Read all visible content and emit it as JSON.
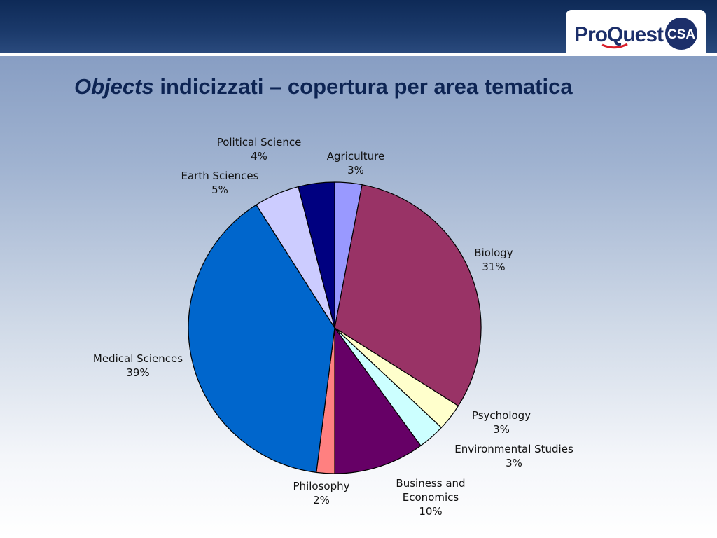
{
  "header": {
    "logo": {
      "proquest_text": "ProQuest",
      "csa_text": "CSA",
      "colors": {
        "navy": "#1c2f6a",
        "red": "#d81e2a"
      }
    }
  },
  "title": {
    "italic_part": "Objects",
    "rest": " indicizzati – copertura per area tematica"
  },
  "chart_data": {
    "type": "pie",
    "title": "",
    "start_angle_deg": 0,
    "direction": "clockwise",
    "slices": [
      {
        "label": "Agriculture",
        "value": 3,
        "value_label": "3%",
        "color": "#9999ff"
      },
      {
        "label": "Biology",
        "value": 31,
        "value_label": "31%",
        "color": "#993366"
      },
      {
        "label": "Psychology",
        "value": 3,
        "value_label": "3%",
        "color": "#ffffcc"
      },
      {
        "label": "Environmental Studies",
        "value": 3,
        "value_label": "3%",
        "color": "#ccffff"
      },
      {
        "label": "Business and Economics",
        "value": 10,
        "value_label": "10%",
        "color": "#660066"
      },
      {
        "label": "Philosophy",
        "value": 2,
        "value_label": "2%",
        "color": "#ff8080"
      },
      {
        "label": "Medical Sciences",
        "value": 39,
        "value_label": "39%",
        "color": "#0066cc"
      },
      {
        "label": "Earth Sciences",
        "value": 5,
        "value_label": "5%",
        "color": "#ccccff"
      },
      {
        "label": "Political Science",
        "value": 4,
        "value_label": "4%",
        "color": "#000080"
      }
    ]
  }
}
